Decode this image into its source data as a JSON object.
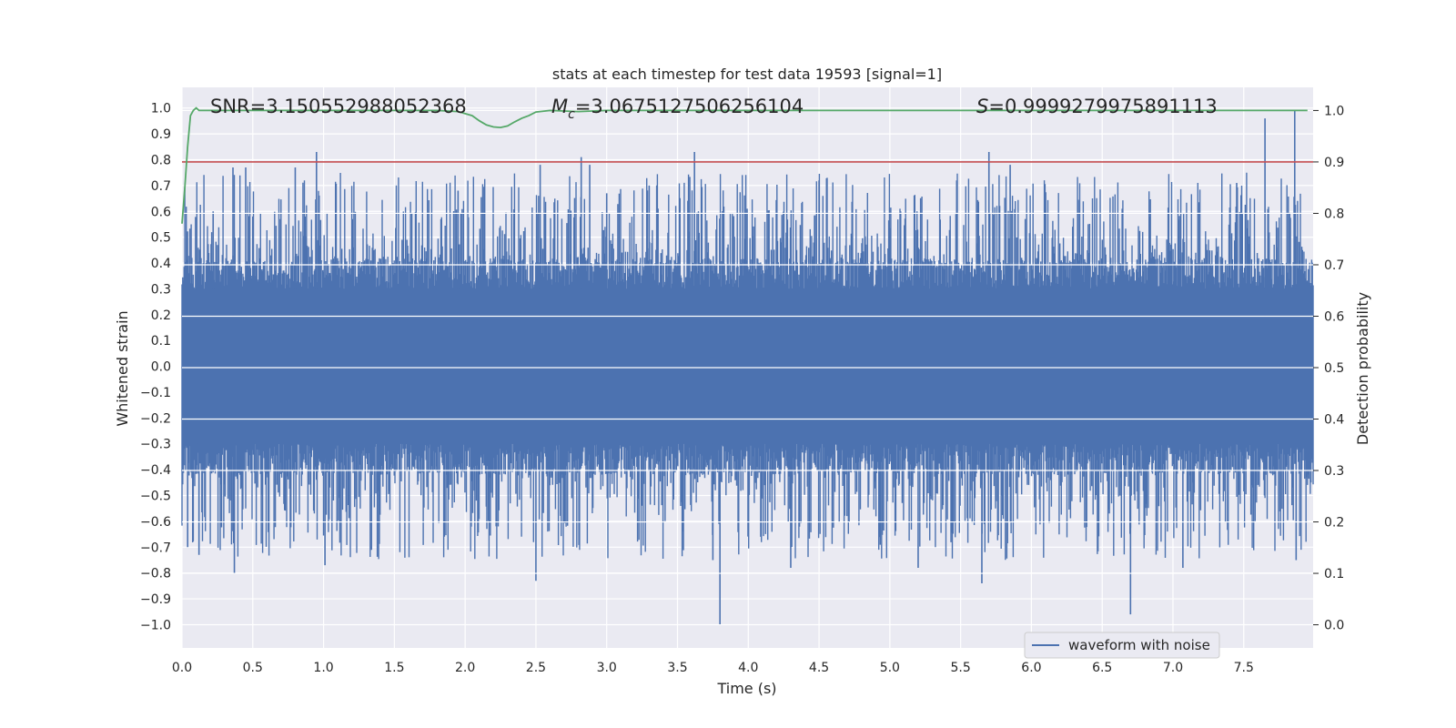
{
  "chart_data": {
    "type": "line",
    "title": "stats at each timestep for test data 19593 [signal=1]",
    "xlabel": "Time (s)",
    "ylabel": "Whitened strain",
    "y2label": "Detection probability",
    "xlim": [
      0.0,
      7.99
    ],
    "ylim": [
      -1.09,
      1.08
    ],
    "y2lim": [
      -0.045,
      1.045
    ],
    "x_ticks": [
      "0.0",
      "0.5",
      "1.0",
      "1.5",
      "2.0",
      "2.5",
      "3.0",
      "3.5",
      "4.0",
      "4.5",
      "5.0",
      "5.5",
      "6.0",
      "6.5",
      "7.0",
      "7.5"
    ],
    "y_ticks": [
      "1.0",
      "0.9",
      "0.8",
      "0.7",
      "0.6",
      "0.5",
      "0.4",
      "0.3",
      "0.2",
      "0.1",
      "0.0",
      "−0.1",
      "−0.2",
      "−0.3",
      "−0.4",
      "−0.5",
      "−0.6",
      "−0.7",
      "−0.8",
      "−0.9",
      "−1.0"
    ],
    "y2_ticks": [
      "1.0",
      "0.9",
      "0.8",
      "0.7",
      "0.6",
      "0.5",
      "0.4",
      "0.3",
      "0.2",
      "0.1",
      "0.0"
    ],
    "grid": true,
    "legend": {
      "position": "lower-right",
      "entries": [
        "waveform with noise"
      ]
    },
    "annotations": {
      "snr": "SNR=3.150552988052368",
      "mc_symbol": "M",
      "mc_sub": "c",
      "mc_value": "=3.0675127506256104",
      "s_symbol": "S",
      "s_value": "=0.9999279975891113"
    },
    "series": [
      {
        "name": "waveform with noise",
        "axis": "left",
        "color": "#4c72b0",
        "sample_count": 4096,
        "band_amplitude": 0.3,
        "spikes": [
          {
            "x": 0.04,
            "y": -0.7
          },
          {
            "x": 0.12,
            "y": -0.73
          },
          {
            "x": 0.22,
            "y": 0.6
          },
          {
            "x": 0.36,
            "y": 0.77
          },
          {
            "x": 0.37,
            "y": -0.8
          },
          {
            "x": 0.45,
            "y": 0.77
          },
          {
            "x": 0.5,
            "y": 0.58
          },
          {
            "x": 0.8,
            "y": 0.77
          },
          {
            "x": 0.95,
            "y": 0.83
          },
          {
            "x": 1.01,
            "y": -0.77
          },
          {
            "x": 1.95,
            "y": 0.68
          },
          {
            "x": 2.53,
            "y": 0.78
          },
          {
            "x": 2.5,
            "y": -0.83
          },
          {
            "x": 2.82,
            "y": 0.81
          },
          {
            "x": 2.88,
            "y": 0.78
          },
          {
            "x": 3.0,
            "y": 0.67
          },
          {
            "x": 3.3,
            "y": 0.7
          },
          {
            "x": 3.62,
            "y": 0.83
          },
          {
            "x": 3.8,
            "y": -1.0
          },
          {
            "x": 3.75,
            "y": -0.75
          },
          {
            "x": 4.5,
            "y": 0.72
          },
          {
            "x": 4.3,
            "y": -0.78
          },
          {
            "x": 5.2,
            "y": -0.78
          },
          {
            "x": 5.7,
            "y": 0.83
          },
          {
            "x": 5.85,
            "y": 0.78
          },
          {
            "x": 5.65,
            "y": -0.84
          },
          {
            "x": 6.7,
            "y": -0.96
          },
          {
            "x": 7.07,
            "y": -0.78
          },
          {
            "x": 7.45,
            "y": 0.71
          },
          {
            "x": 7.65,
            "y": 0.96
          },
          {
            "x": 7.86,
            "y": 0.99
          },
          {
            "x": 7.87,
            "y": -0.75
          }
        ]
      },
      {
        "name": "",
        "axis": "right",
        "color": "#55a868",
        "x": [
          0.0,
          0.02,
          0.04,
          0.06,
          0.08,
          0.1,
          0.12,
          0.15,
          0.2,
          1.0,
          1.8,
          1.95,
          2.05,
          2.1,
          2.15,
          2.2,
          2.25,
          2.3,
          2.35,
          2.4,
          2.45,
          2.5,
          2.6,
          2.8,
          3.0,
          4.0,
          5.0,
          6.0,
          7.0,
          7.95
        ],
        "values": [
          0.78,
          0.85,
          0.93,
          0.99,
          1.0,
          1.005,
          1.0,
          1.0,
          1.0,
          1.0,
          1.0,
          0.998,
          0.99,
          0.98,
          0.972,
          0.968,
          0.967,
          0.97,
          0.978,
          0.985,
          0.99,
          0.997,
          1.0,
          0.998,
          1.0,
          1.0,
          1.0,
          1.0,
          1.0,
          1.0
        ]
      },
      {
        "name": "",
        "axis": "right",
        "color": "#c44e52",
        "type": "threshold",
        "value": 0.9
      }
    ]
  }
}
